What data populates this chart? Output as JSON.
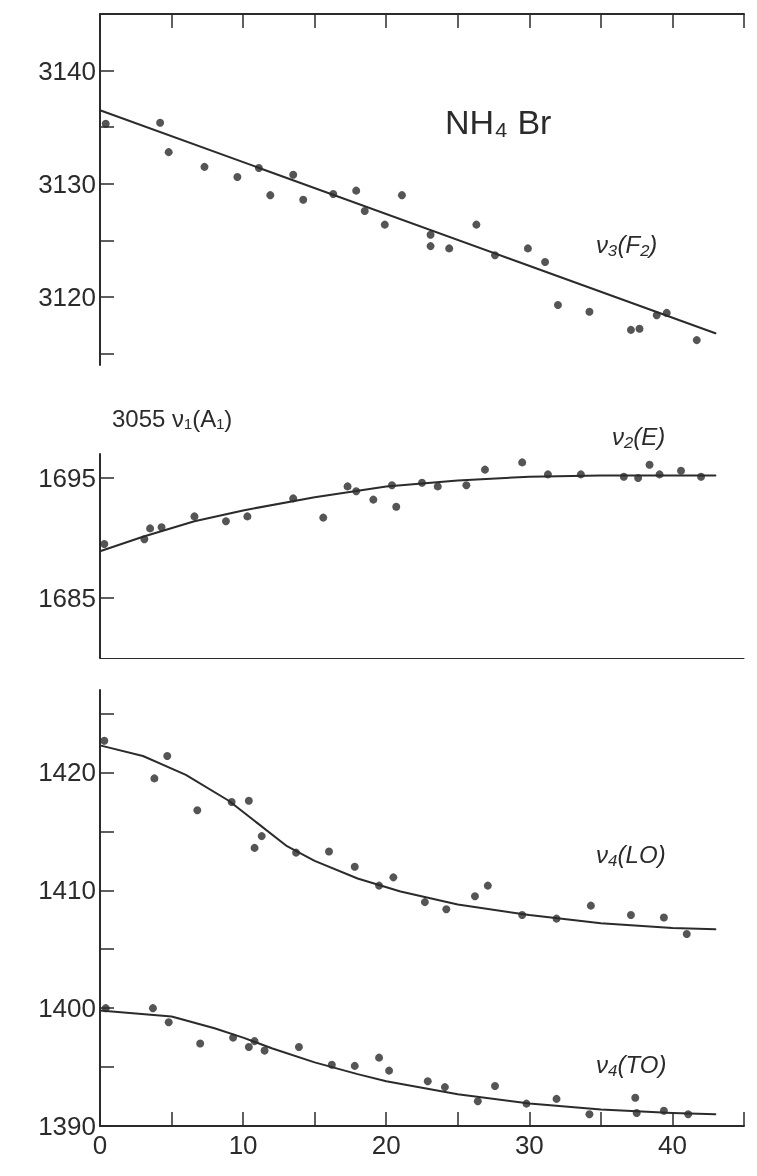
{
  "chart_data": [
    {
      "type": "scatter",
      "title": "NH₄ Br",
      "xlim": [
        0,
        45
      ],
      "xticks": [
        {
          "value": 0,
          "label": null
        },
        {
          "value": 5,
          "label": null
        },
        {
          "value": 10,
          "label": null
        },
        {
          "value": 15,
          "label": null
        },
        {
          "value": 20,
          "label": null
        },
        {
          "value": 25,
          "label": null
        },
        {
          "value": 30,
          "label": null
        },
        {
          "value": 35,
          "label": null
        },
        {
          "value": 40,
          "label": null
        },
        {
          "value": 45,
          "label": null
        }
      ],
      "ylim": [
        3114,
        3145
      ],
      "yticks": [
        {
          "value": 3115,
          "label": null
        },
        3120,
        {
          "value": 3125,
          "label": null
        },
        3130,
        {
          "value": 3135,
          "label": null
        },
        3140
      ],
      "tick_labels": "y",
      "grid": false,
      "legend": false,
      "series": [
        {
          "name": "ν₃(F₂)",
          "color": "#2b2b2b",
          "marker": "circle",
          "x": [
            0.4,
            4.2,
            4.8,
            7.3,
            9.6,
            11.1,
            11.9,
            13.5,
            14.2,
            16.3,
            17.9,
            18.5,
            19.9,
            21.1,
            23.1,
            23.1,
            24.4,
            26.3,
            27.6,
            29.9,
            31.1,
            32.0,
            34.2,
            37.1,
            37.7,
            38.9,
            39.6,
            41.7
          ],
          "values": [
            3135.3,
            3135.4,
            3132.8,
            3131.5,
            3130.6,
            3131.4,
            3129.0,
            3130.8,
            3128.6,
            3129.1,
            3129.4,
            3127.6,
            3126.4,
            3129.0,
            3125.5,
            3124.5,
            3124.3,
            3126.4,
            3123.7,
            3124.3,
            3123.1,
            3119.3,
            3118.7,
            3117.1,
            3117.2,
            3118.4,
            3118.6,
            3116.2
          ]
        },
        {
          "type": "line",
          "color": "#2b2b2b",
          "marker": "none",
          "line_style": "solid",
          "x": [
            0,
            43
          ],
          "values": [
            3136.5,
            3116.8
          ]
        }
      ]
    },
    {
      "type": "scatter",
      "annotations": [
        "3055 ν₁(A₁)"
      ],
      "xlim": [
        0,
        45
      ],
      "ylim": [
        1680,
        1697
      ],
      "yticks": [
        1685,
        1695
      ],
      "tick_labels": "y",
      "grid": false,
      "legend": false,
      "series": [
        {
          "name": "ν₂(E)",
          "color": "#2b2b2b",
          "marker": "circle",
          "x": [
            0.3,
            3.1,
            3.5,
            4.3,
            6.6,
            8.8,
            10.3,
            13.5,
            15.6,
            17.3,
            17.9,
            19.1,
            20.4,
            20.7,
            22.5,
            23.6,
            25.6,
            26.9,
            29.5,
            31.3,
            33.6,
            36.6,
            37.6,
            38.4,
            39.1,
            40.6,
            42.0
          ],
          "values": [
            1689.5,
            1689.9,
            1690.8,
            1690.9,
            1691.8,
            1691.4,
            1691.8,
            1693.3,
            1691.7,
            1694.3,
            1693.9,
            1693.2,
            1694.4,
            1692.6,
            1694.6,
            1694.3,
            1694.4,
            1695.7,
            1696.3,
            1695.3,
            1695.3,
            1695.1,
            1695.0,
            1696.1,
            1695.3,
            1695.6,
            1695.1
          ]
        },
        {
          "type": "line",
          "color": "#2b2b2b",
          "marker": "none",
          "line_style": "solid",
          "x": [
            0,
            3,
            6.6,
            10,
            15,
            20,
            25,
            30,
            35,
            43
          ],
          "values": [
            1688.9,
            1690.1,
            1691.4,
            1692.3,
            1693.4,
            1694.3,
            1694.8,
            1695.1,
            1695.2,
            1695.2
          ]
        }
      ]
    },
    {
      "type": "scatter",
      "xlim": [
        0,
        45
      ],
      "xticks": [
        0,
        {
          "value": 5,
          "label": null
        },
        10,
        {
          "value": 15,
          "label": null
        },
        20,
        {
          "value": 25,
          "label": null
        },
        30,
        {
          "value": 35,
          "label": null
        },
        40,
        {
          "value": 45,
          "label": null
        }
      ],
      "ylim": [
        1390,
        1427
      ],
      "yticks": [
        1390,
        {
          "value": 1395,
          "label": null
        },
        1400,
        {
          "value": 1405,
          "label": null
        },
        1410,
        {
          "value": 1415,
          "label": null
        },
        1420,
        {
          "value": 1425,
          "label": null
        }
      ],
      "grid": false,
      "legend": false,
      "series": [
        {
          "name": "ν₄(LO)",
          "color": "#2b2b2b",
          "marker": "circle",
          "x": [
            0.3,
            3.8,
            4.7,
            6.8,
            9.2,
            10.4,
            10.8,
            11.3,
            13.7,
            16.0,
            17.8,
            19.5,
            20.5,
            22.7,
            24.2,
            26.2,
            27.1,
            29.5,
            31.9,
            34.3,
            37.1,
            39.4,
            41.0
          ],
          "values": [
            1422.7,
            1419.5,
            1421.4,
            1416.8,
            1417.5,
            1417.6,
            1413.6,
            1414.6,
            1413.2,
            1413.3,
            1412.0,
            1410.4,
            1411.1,
            1409.0,
            1408.4,
            1409.5,
            1410.4,
            1407.9,
            1407.6,
            1408.7,
            1407.9,
            1407.7,
            1406.3
          ]
        },
        {
          "type": "line",
          "color": "#2b2b2b",
          "marker": "none",
          "line_style": "solid",
          "x": [
            0,
            3,
            6,
            9,
            11,
            13,
            15,
            18,
            21,
            25,
            30,
            35,
            40,
            43
          ],
          "values": [
            1422.3,
            1421.4,
            1419.8,
            1417.6,
            1415.7,
            1413.8,
            1412.5,
            1411.0,
            1409.9,
            1408.8,
            1407.9,
            1407.2,
            1406.8,
            1406.7
          ]
        },
        {
          "name": "ν₄(TO)",
          "color": "#2b2b2b",
          "marker": "circle",
          "x": [
            0.4,
            3.7,
            4.8,
            7.0,
            9.3,
            10.4,
            10.8,
            11.5,
            13.9,
            16.2,
            17.8,
            19.5,
            20.2,
            22.9,
            24.1,
            26.4,
            27.6,
            29.8,
            31.9,
            34.2,
            37.4,
            37.5,
            39.4,
            41.1
          ],
          "values": [
            1400.0,
            1400.0,
            1398.8,
            1397.0,
            1397.5,
            1396.7,
            1397.2,
            1396.4,
            1396.7,
            1395.2,
            1395.1,
            1395.8,
            1394.7,
            1393.8,
            1393.3,
            1392.1,
            1393.4,
            1391.9,
            1392.3,
            1391.0,
            1392.4,
            1391.1,
            1391.3,
            1391.0
          ]
        },
        {
          "type": "line",
          "color": "#2b2b2b",
          "marker": "none",
          "line_style": "solid",
          "x": [
            0,
            5,
            8,
            10,
            12,
            15,
            18,
            20,
            25,
            30,
            35,
            40,
            43
          ],
          "values": [
            1399.8,
            1399.3,
            1398.3,
            1397.5,
            1396.6,
            1395.4,
            1394.4,
            1393.8,
            1392.7,
            1391.9,
            1391.4,
            1391.1,
            1391.0
          ]
        }
      ]
    }
  ]
}
